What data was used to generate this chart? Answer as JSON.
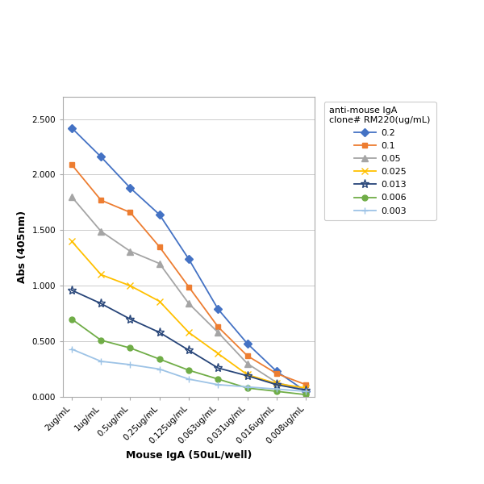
{
  "x_labels": [
    "2ug/mL",
    "1ug/mL",
    "0.5ug/mL",
    "0.25ug/mL",
    "0.125ug/mL",
    "0.063ug/mL",
    "0.031ug/mL",
    "0.016ug/mL",
    "0.008ug/mL"
  ],
  "series": [
    {
      "label": "0.2",
      "color": "#4472C4",
      "marker": "D",
      "values": [
        2.42,
        2.16,
        1.88,
        1.64,
        1.24,
        0.79,
        0.48,
        0.23,
        0.05
      ]
    },
    {
      "label": "0.1",
      "color": "#ED7D31",
      "marker": "s",
      "values": [
        2.09,
        1.77,
        1.66,
        1.35,
        0.99,
        0.63,
        0.37,
        0.21,
        0.11
      ]
    },
    {
      "label": "0.05",
      "color": "#A5A5A5",
      "marker": "^",
      "values": [
        1.8,
        1.49,
        1.31,
        1.2,
        0.84,
        0.58,
        0.3,
        0.13,
        0.06
      ]
    },
    {
      "label": "0.025",
      "color": "#FFC000",
      "marker": "x",
      "values": [
        1.4,
        1.1,
        1.0,
        0.86,
        0.58,
        0.39,
        0.2,
        0.12,
        0.08
      ]
    },
    {
      "label": "0.013",
      "color": "#264478",
      "marker": "*",
      "values": [
        0.96,
        0.84,
        0.7,
        0.58,
        0.42,
        0.26,
        0.19,
        0.11,
        0.06
      ]
    },
    {
      "label": "0.006",
      "color": "#70AD47",
      "marker": "o",
      "values": [
        0.7,
        0.51,
        0.44,
        0.34,
        0.24,
        0.16,
        0.08,
        0.05,
        0.02
      ]
    },
    {
      "label": "0.003",
      "color": "#9DC3E6",
      "marker": "+",
      "values": [
        0.43,
        0.32,
        0.29,
        0.25,
        0.16,
        0.11,
        0.09,
        0.07,
        0.05
      ]
    }
  ],
  "xlabel": "Mouse IgA (50uL/well)",
  "ylabel": "Abs (405nm)",
  "legend_title": "anti-mouse IgA\nclone# RM220(ug/mL)",
  "ylim": [
    0.0,
    2.7
  ],
  "yticks": [
    0.0,
    0.5,
    1.0,
    1.5,
    2.0,
    2.5
  ],
  "ytick_labels": [
    "0.000",
    "0.500",
    "1.000",
    "1.500",
    "2.000",
    "2.500"
  ],
  "background_color": "#FFFFFF",
  "grid_color": "#CCCCCC"
}
